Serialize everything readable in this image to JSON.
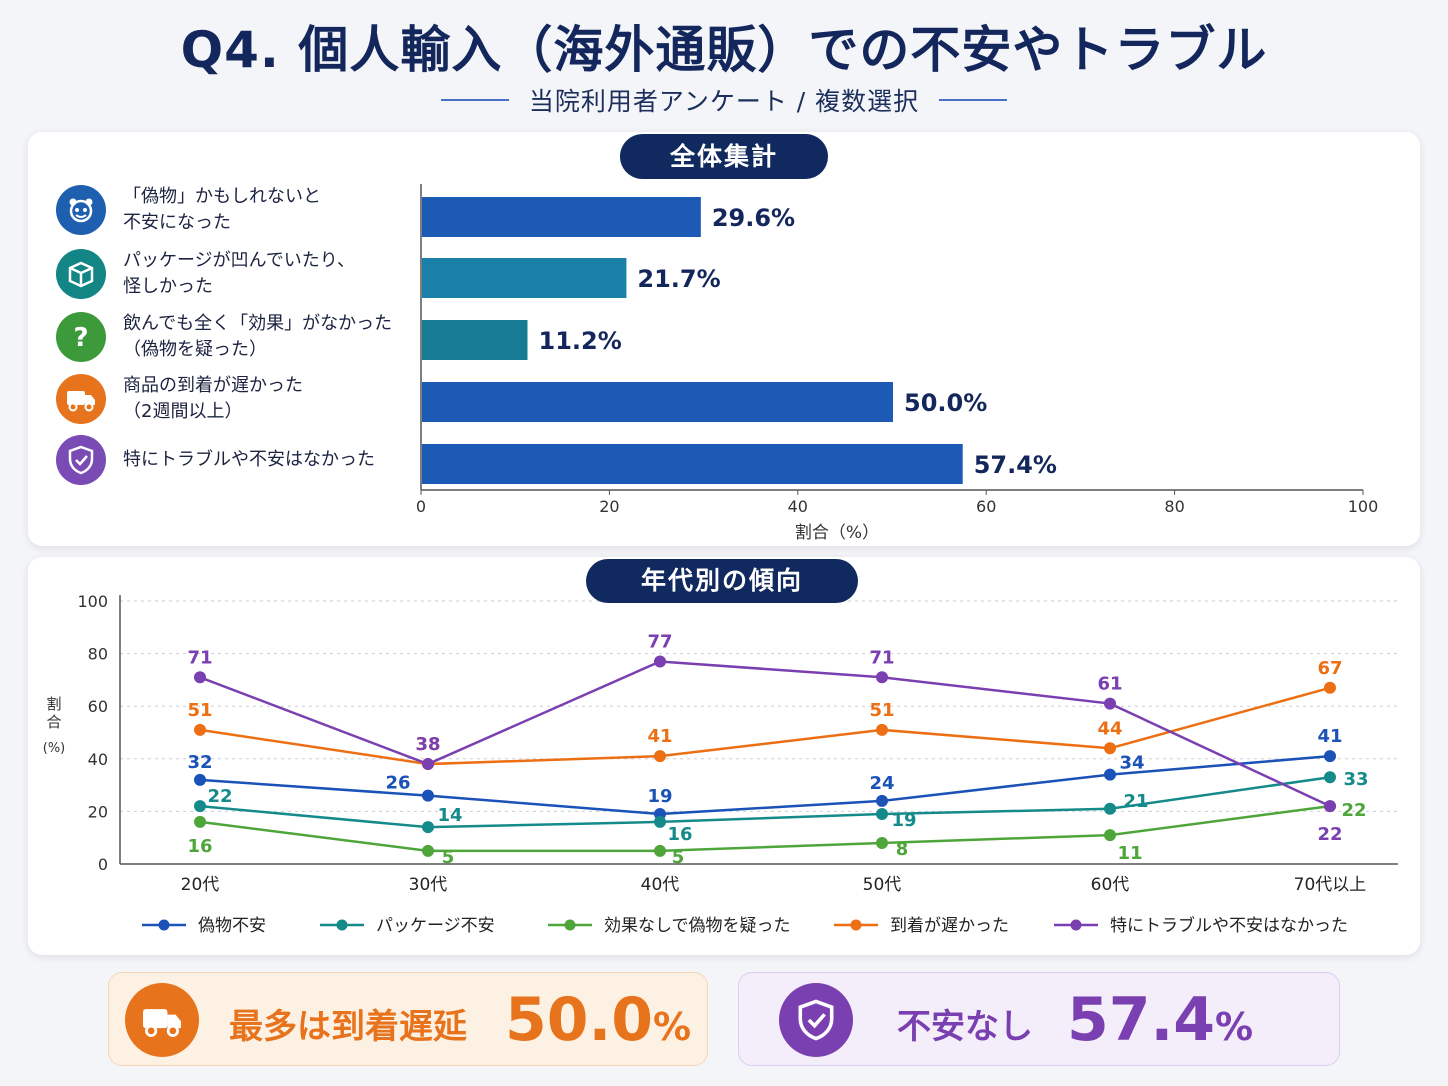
{
  "title": "Q4. 個人輸入（海外通販）での不安やトラブル",
  "subtitle": "当院利用者アンケート / 複数選択",
  "overall": {
    "pill": "全体集計",
    "categories": [
      {
        "label": "「偽物」かもしれないと\n不安になった",
        "icon": "mask-face-icon",
        "color": "#1f5fb0"
      },
      {
        "label": "パッケージが凹んでいたり、\n怪しかった",
        "icon": "box-icon",
        "color": "#138585"
      },
      {
        "label": "飲んでも全く「効果」がなかった\n（偽物を疑った）",
        "icon": "question-icon",
        "color": "#3d9a3a"
      },
      {
        "label": "商品の到着が遅かった\n（2週間以上）",
        "icon": "truck-icon",
        "color": "#e8731d"
      },
      {
        "label": "特にトラブルや不安はなかった",
        "icon": "shield-check-icon",
        "color": "#7a4bb5"
      }
    ]
  },
  "age": {
    "pill": "年代別の傾向"
  },
  "chart_data": [
    {
      "type": "bar",
      "orientation": "horizontal",
      "categories": [
        "「偽物」かもしれないと不安になった",
        "パッケージが凹んでいたり、怪しかった",
        "飲んでも全く「効果」がなかった（偽物を疑った）",
        "商品の到着が遅かった（2週間以上）",
        "特にトラブルや不安はなかった"
      ],
      "values": [
        29.6,
        21.7,
        11.2,
        50.0,
        57.4
      ],
      "value_labels": [
        "29.6%",
        "21.7%",
        "11.2%",
        "50.0%",
        "57.4%"
      ],
      "xlabel": "割合（%）",
      "xlim": [
        0,
        100
      ],
      "ticks": [
        0,
        20,
        40,
        60,
        80,
        100
      ],
      "colors": [
        "#1d5ab5",
        "#1a80a8",
        "#177b96",
        "#1d5ab5",
        "#1d5ab5"
      ]
    },
    {
      "type": "line",
      "categories": [
        "20代",
        "30代",
        "40代",
        "50代",
        "60代",
        "70代以上"
      ],
      "ylabel": "割合 (%)",
      "ylim": [
        0,
        100
      ],
      "ticks": [
        0,
        20,
        40,
        60,
        80,
        100
      ],
      "legend_position": "bottom",
      "series": [
        {
          "name": "偽物不安",
          "color": "#1a52b8",
          "values": [
            32,
            26,
            19,
            24,
            34,
            41
          ]
        },
        {
          "name": "パッケージ不安",
          "color": "#148a8a",
          "values": [
            22,
            14,
            16,
            19,
            21,
            33
          ]
        },
        {
          "name": "効果なしで偽物を疑った",
          "color": "#4ea53a",
          "values": [
            16,
            5,
            5,
            8,
            11,
            22
          ]
        },
        {
          "name": "到着が遅かった",
          "color": "#ec6f13",
          "values": [
            51,
            38,
            41,
            51,
            44,
            67
          ]
        },
        {
          "name": "特にトラブルや不安はなかった",
          "color": "#7a3fb0",
          "values": [
            71,
            38,
            77,
            71,
            61,
            22
          ]
        }
      ]
    }
  ],
  "callouts": {
    "left": {
      "text": "最多は到着遅延",
      "number": "50.0",
      "unit": "%",
      "icon": "truck-icon",
      "color": "#e8731d"
    },
    "right": {
      "text": "不安なし",
      "number": "57.4",
      "unit": "%",
      "icon": "shield-check-icon",
      "color": "#7a3fb0"
    }
  }
}
